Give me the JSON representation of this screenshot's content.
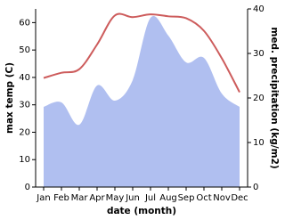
{
  "chart_data": {
    "type": "line",
    "xlabel": "date (month)",
    "ylabel": "max temp (C)",
    "y2label": "med. precipitation (kg/m2)",
    "categories": [
      "Jan",
      "Feb",
      "Mar",
      "Apr",
      "May",
      "Jun",
      "Jul",
      "Aug",
      "Sep",
      "Oct",
      "Nov",
      "Dec"
    ],
    "series": [
      {
        "name": "max temp",
        "type": "line",
        "color": "#cd5c5c",
        "axis": "y",
        "values": [
          39.8,
          41.7,
          43,
          52,
          62.6,
          62,
          63,
          62.3,
          61.6,
          57,
          47,
          34.6
        ]
      },
      {
        "name": "med. precipitation",
        "type": "area",
        "color": "#b0bff0",
        "axis": "y2",
        "values": [
          18,
          19,
          14,
          22.8,
          19.4,
          24,
          38,
          34,
          28,
          29,
          21,
          18
        ]
      }
    ],
    "ylim": [
      0,
      65
    ],
    "yticks": [
      0,
      10,
      20,
      30,
      40,
      50,
      60
    ],
    "y2lim": [
      0,
      40
    ],
    "y2ticks": [
      0,
      10,
      20,
      30,
      40
    ],
    "grid": false
  }
}
